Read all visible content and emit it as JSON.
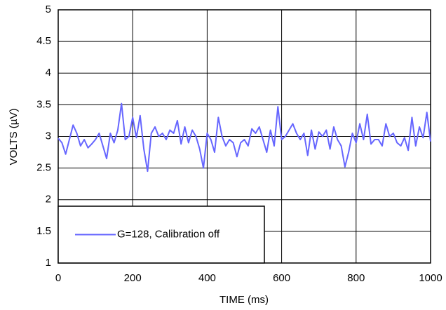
{
  "chart_data": {
    "type": "line",
    "x_label": "TIME (ms)",
    "y_label": "VOLTS (µV)",
    "x": [
      0,
      10,
      20,
      30,
      40,
      50,
      60,
      70,
      80,
      90,
      100,
      110,
      120,
      130,
      140,
      150,
      160,
      170,
      180,
      190,
      200,
      210,
      220,
      230,
      240,
      250,
      260,
      270,
      280,
      290,
      300,
      310,
      320,
      330,
      340,
      350,
      360,
      370,
      380,
      390,
      400,
      410,
      420,
      430,
      440,
      450,
      460,
      470,
      480,
      490,
      500,
      510,
      520,
      530,
      540,
      550,
      560,
      570,
      580,
      590,
      600,
      610,
      620,
      630,
      640,
      650,
      660,
      670,
      680,
      690,
      700,
      710,
      720,
      730,
      740,
      750,
      760,
      770,
      780,
      790,
      800,
      810,
      820,
      830,
      840,
      850,
      860,
      870,
      880,
      890,
      900,
      910,
      920,
      930,
      940,
      950,
      960,
      970,
      980,
      990,
      1000
    ],
    "series": [
      {
        "name": "G=128, Calibration off",
        "color": "#6666ff",
        "values": [
          2.97,
          2.9,
          2.72,
          2.95,
          3.18,
          3.05,
          2.85,
          2.95,
          2.82,
          2.88,
          2.95,
          3.05,
          2.85,
          2.65,
          3.05,
          2.9,
          3.1,
          3.52,
          2.95,
          3.0,
          3.3,
          2.98,
          3.33,
          2.8,
          2.45,
          3.05,
          3.15,
          3.0,
          3.05,
          2.95,
          3.1,
          3.05,
          3.25,
          2.88,
          3.15,
          2.9,
          3.1,
          3.0,
          2.8,
          2.5,
          3.05,
          2.95,
          2.75,
          3.3,
          3.0,
          2.85,
          2.95,
          2.9,
          2.68,
          2.9,
          2.95,
          2.85,
          3.12,
          3.05,
          3.15,
          2.95,
          2.75,
          3.1,
          2.85,
          3.47,
          2.95,
          3.0,
          3.1,
          3.2,
          3.05,
          2.95,
          3.05,
          2.7,
          3.1,
          2.8,
          3.07,
          3.0,
          3.1,
          2.8,
          3.15,
          2.95,
          2.85,
          2.52,
          2.75,
          3.05,
          2.9,
          3.2,
          2.95,
          3.35,
          2.88,
          2.95,
          2.95,
          2.85,
          3.2,
          3.0,
          3.05,
          2.9,
          2.85,
          2.98,
          2.78,
          3.3,
          2.85,
          3.15,
          2.98,
          3.38,
          2.92
        ]
      }
    ],
    "xlim": [
      0,
      1000
    ],
    "xticks": [
      0,
      200,
      400,
      600,
      800,
      1000
    ],
    "ylim": [
      1,
      5
    ],
    "yticks": [
      1,
      1.5,
      2,
      2.5,
      3,
      3.5,
      4,
      4.5,
      5
    ],
    "grid": true,
    "legend": "lower left"
  }
}
